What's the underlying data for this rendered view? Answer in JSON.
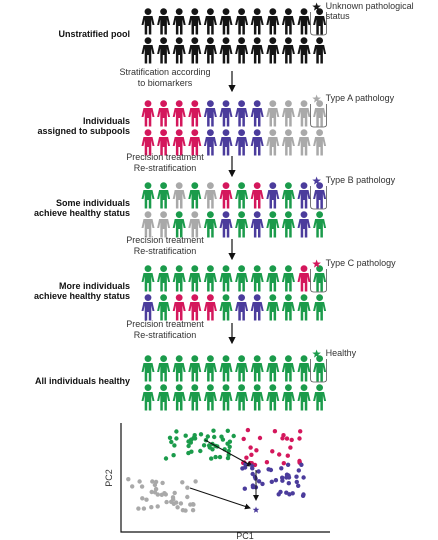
{
  "rows": [
    {
      "label": [
        "Unstratified pool"
      ],
      "note": [
        "Unknown pathological",
        "status"
      ]
    },
    {
      "label": [
        "Individuals",
        "assigned to subpools"
      ],
      "note": [
        "Type A pathology"
      ]
    },
    {
      "label": [
        "Some individuals",
        "achieve healthy status"
      ],
      "note": [
        "Type B pathology"
      ]
    },
    {
      "label": [
        "More individuals",
        "achieve healthy status"
      ],
      "note": [
        "Type C pathology"
      ]
    },
    {
      "label": [
        "All individuals healthy"
      ],
      "note": [
        "Healthy"
      ]
    }
  ],
  "steps": [
    [
      "Stratification according",
      "to biomarkers"
    ],
    [
      "Precision treatment",
      "Re-stratification"
    ],
    [
      "Precision treatment",
      "Re-stratification"
    ],
    [
      "Precision treatment",
      "Re-stratification"
    ]
  ],
  "plot": {
    "x_label": "PC1",
    "y_label": "PC2"
  }
}
